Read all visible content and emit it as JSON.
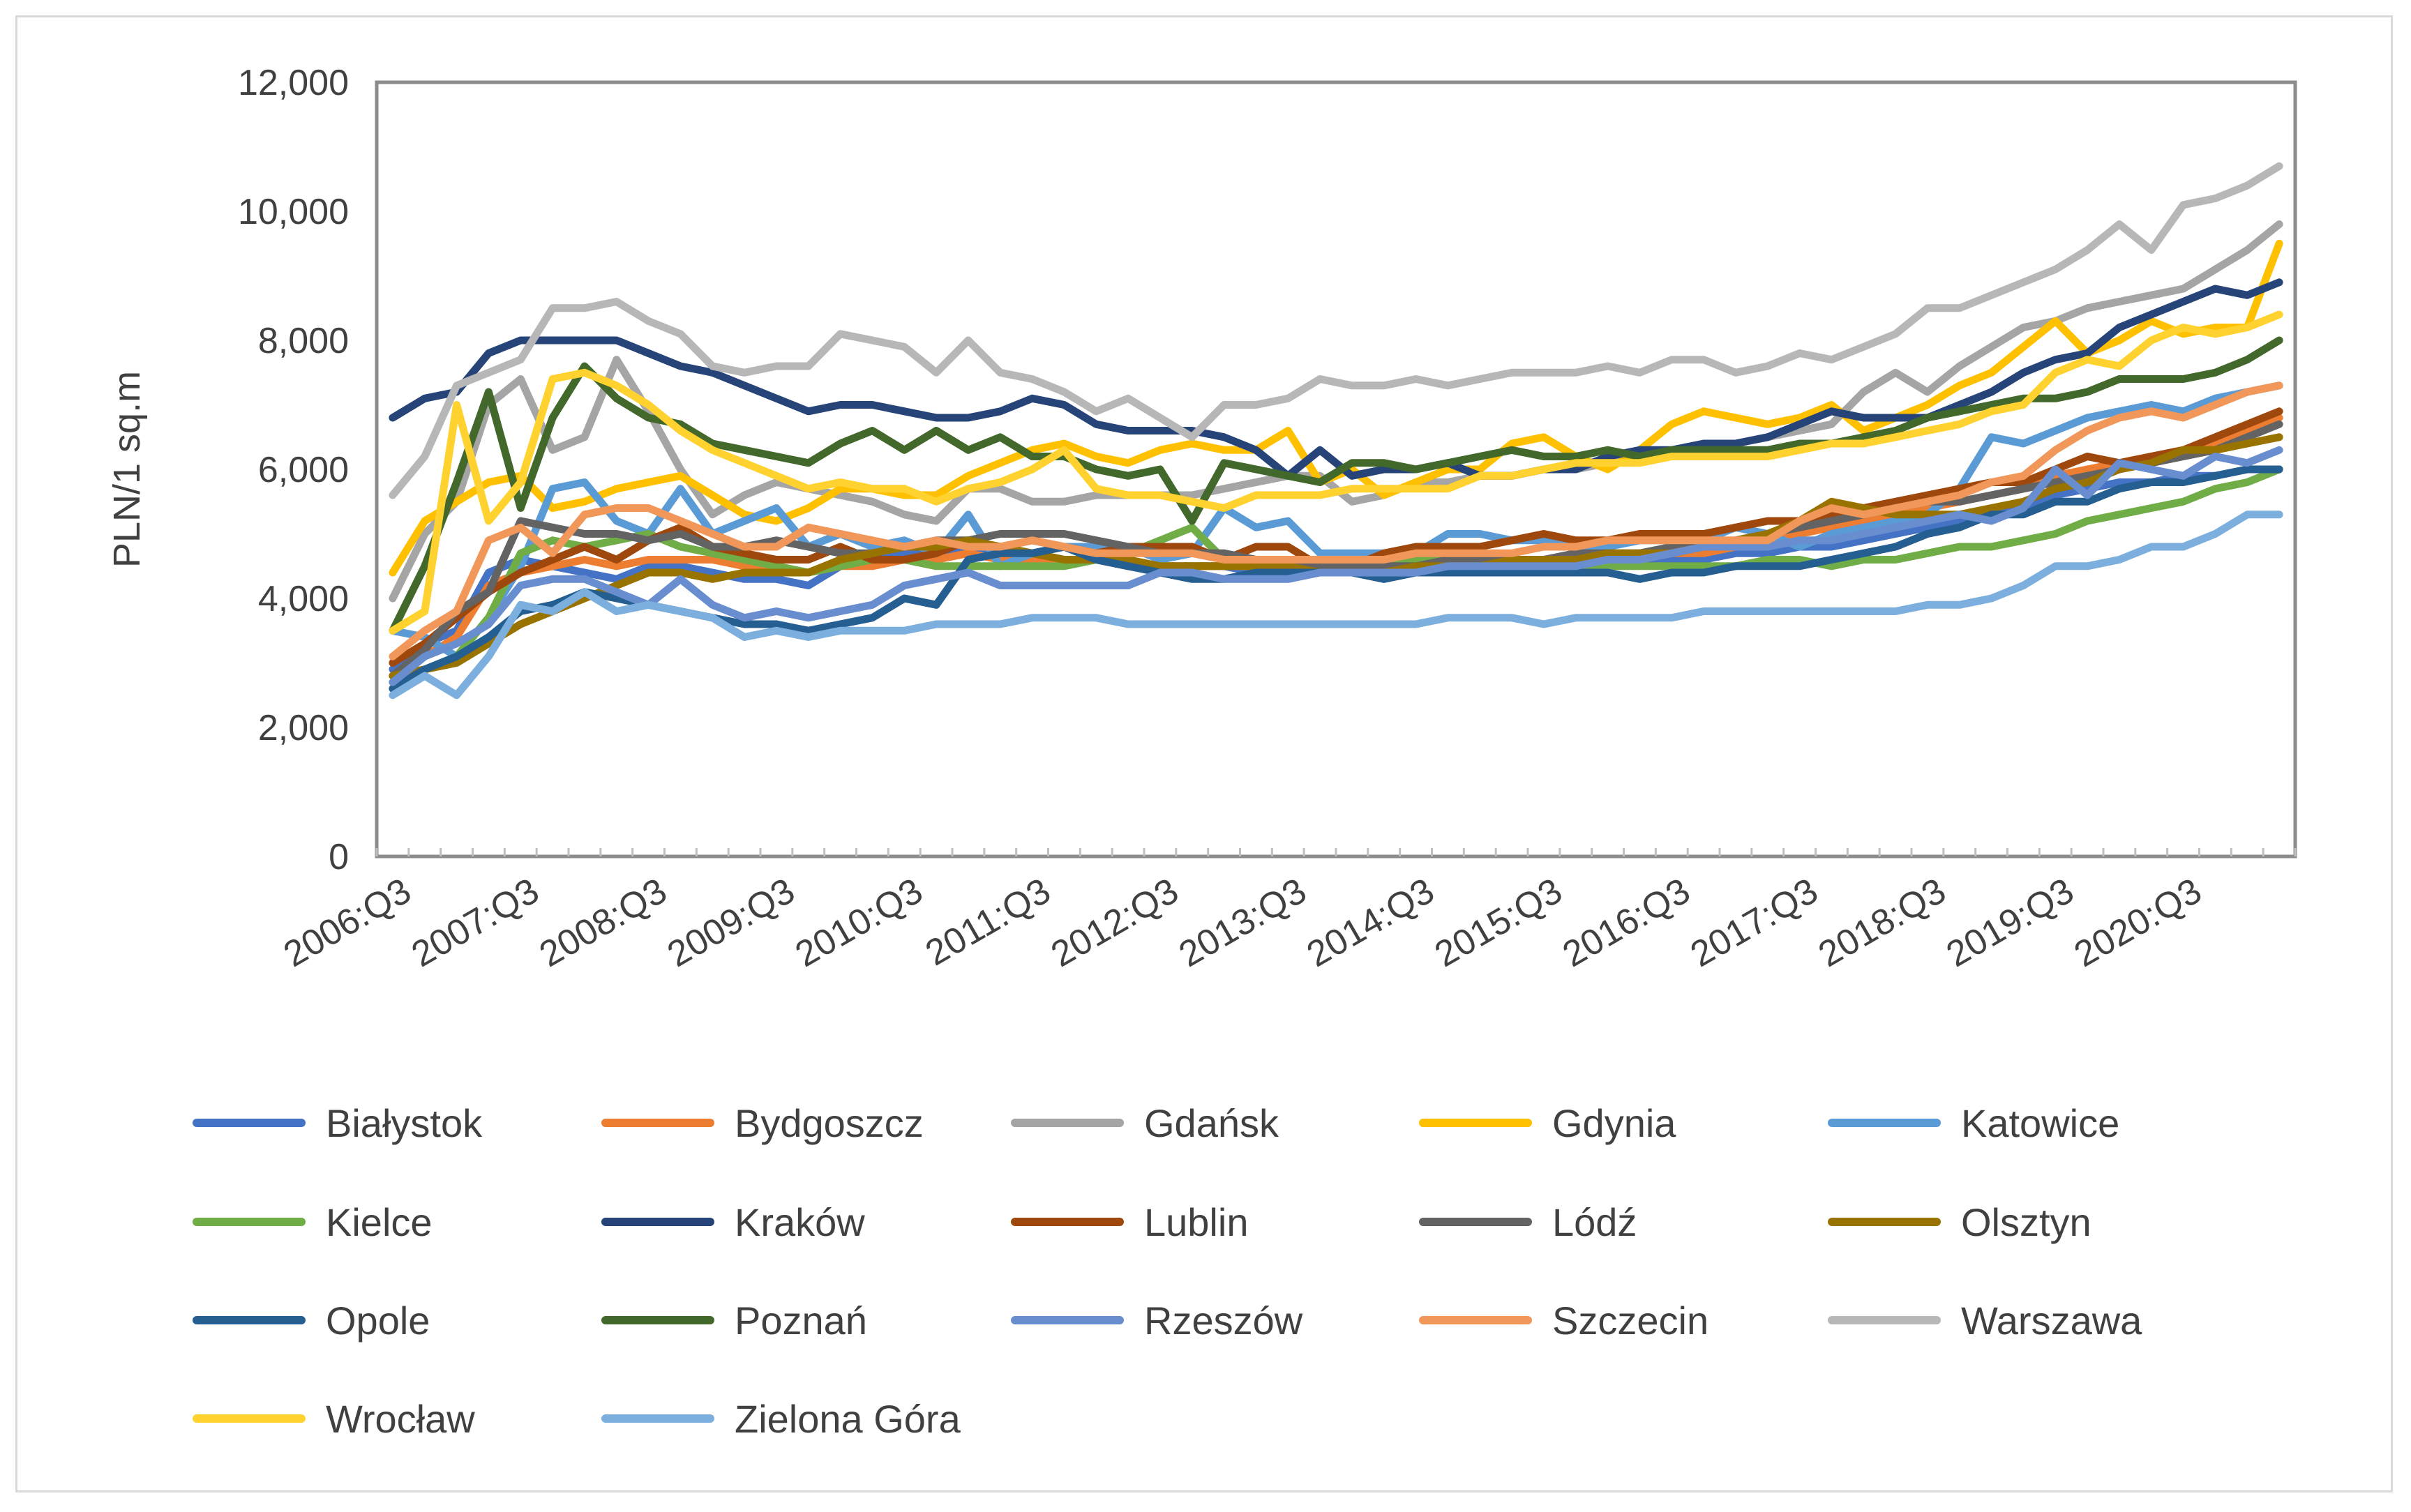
{
  "chart_data": {
    "type": "line",
    "title": "",
    "xlabel": "",
    "ylabel": "PLN/1 sq.m",
    "ylim": [
      0,
      12000
    ],
    "yticks": [
      0,
      2000,
      4000,
      6000,
      8000,
      10000,
      12000
    ],
    "ytick_labels": [
      "0",
      "2,000",
      "4,000",
      "6,000",
      "8,000",
      "10,000",
      "12,000"
    ],
    "xtick_labels": [
      "2006:Q3",
      "2007:Q3",
      "2008:Q3",
      "2009:Q3",
      "2010:Q3",
      "2011:Q3",
      "2012:Q3",
      "2013:Q3",
      "2014:Q3",
      "2015:Q3",
      "2016:Q3",
      "2017:Q3",
      "2018:Q3",
      "2019:Q3",
      "2020:Q3"
    ],
    "grid": false,
    "legend": "bottom",
    "x": [
      "2006:Q3",
      "2006:Q4",
      "2007:Q1",
      "2007:Q2",
      "2007:Q3",
      "2007:Q4",
      "2008:Q1",
      "2008:Q2",
      "2008:Q3",
      "2008:Q4",
      "2009:Q1",
      "2009:Q2",
      "2009:Q3",
      "2009:Q4",
      "2010:Q1",
      "2010:Q2",
      "2010:Q3",
      "2010:Q4",
      "2011:Q1",
      "2011:Q2",
      "2011:Q3",
      "2011:Q4",
      "2012:Q1",
      "2012:Q2",
      "2012:Q3",
      "2012:Q4",
      "2013:Q1",
      "2013:Q2",
      "2013:Q3",
      "2013:Q4",
      "2014:Q1",
      "2014:Q2",
      "2014:Q3",
      "2014:Q4",
      "2015:Q1",
      "2015:Q2",
      "2015:Q3",
      "2015:Q4",
      "2016:Q1",
      "2016:Q2",
      "2016:Q3",
      "2016:Q4",
      "2017:Q1",
      "2017:Q2",
      "2017:Q3",
      "2017:Q4",
      "2018:Q1",
      "2018:Q2",
      "2018:Q3",
      "2018:Q4",
      "2019:Q1",
      "2019:Q2",
      "2019:Q3",
      "2019:Q4",
      "2020:Q1",
      "2020:Q2",
      "2020:Q3",
      "2020:Q4",
      "2021:Q1",
      "2021:Q2"
    ],
    "series": [
      {
        "name": "Białystok",
        "color": "#4472c4",
        "values": [
          2900,
          3300,
          3500,
          4400,
          4600,
          4500,
          4400,
          4300,
          4500,
          4500,
          4400,
          4300,
          4300,
          4200,
          4500,
          4600,
          4700,
          4700,
          4800,
          4700,
          4700,
          4600,
          4600,
          4500,
          4500,
          4500,
          4500,
          4400,
          4400,
          4400,
          4500,
          4500,
          4500,
          4600,
          4600,
          4600,
          4600,
          4600,
          4600,
          4600,
          4600,
          4600,
          4700,
          4700,
          4800,
          4800,
          4900,
          5000,
          5100,
          5200,
          5300,
          5400,
          5600,
          5700,
          5800,
          5800,
          5900,
          5900,
          6000,
          6000
        ]
      },
      {
        "name": "Bydgoszcz",
        "color": "#ed7d31",
        "values": [
          2800,
          3100,
          3400,
          4200,
          4400,
          4500,
          4600,
          4500,
          4600,
          4600,
          4600,
          4500,
          4500,
          4400,
          4500,
          4500,
          4600,
          4600,
          4700,
          4600,
          4600,
          4600,
          4600,
          4500,
          4500,
          4500,
          4500,
          4500,
          4500,
          4400,
          4500,
          4500,
          4500,
          4500,
          4600,
          4600,
          4600,
          4600,
          4600,
          4600,
          4700,
          4700,
          4800,
          4900,
          5000,
          5100,
          5200,
          5300,
          5400,
          5500,
          5600,
          5700,
          5900,
          6000,
          6100,
          6200,
          6300,
          6400,
          6600,
          6800
        ]
      },
      {
        "name": "Gdańsk",
        "color": "#a5a5a5",
        "values": [
          4000,
          5000,
          5500,
          7000,
          7400,
          6300,
          6500,
          7700,
          6900,
          6000,
          5300,
          5600,
          5800,
          5700,
          5600,
          5500,
          5300,
          5200,
          5700,
          5700,
          5500,
          5500,
          5600,
          5600,
          5600,
          5600,
          5700,
          5800,
          5900,
          5900,
          5500,
          5600,
          5800,
          5800,
          5900,
          5900,
          6000,
          6000,
          6100,
          6200,
          6300,
          6300,
          6400,
          6500,
          6600,
          6700,
          7200,
          7500,
          7200,
          7600,
          7900,
          8200,
          8300,
          8500,
          8600,
          8700,
          8800,
          9100,
          9400,
          9800
        ]
      },
      {
        "name": "Gdynia",
        "color": "#ffc000",
        "values": [
          4400,
          5200,
          5500,
          5800,
          5900,
          5400,
          5500,
          5700,
          5800,
          5900,
          5600,
          5300,
          5200,
          5400,
          5700,
          5700,
          5600,
          5600,
          5900,
          6100,
          6300,
          6400,
          6200,
          6100,
          6300,
          6400,
          6300,
          6300,
          6600,
          5800,
          6000,
          5600,
          5800,
          6000,
          6000,
          6400,
          6500,
          6200,
          6000,
          6300,
          6700,
          6900,
          6800,
          6700,
          6800,
          7000,
          6600,
          6800,
          7000,
          7300,
          7500,
          7900,
          8300,
          7800,
          8000,
          8300,
          8100,
          8200,
          8200,
          9500
        ]
      },
      {
        "name": "Katowice",
        "color": "#5b9bd5",
        "values": [
          3500,
          3400,
          3100,
          3700,
          4500,
          5700,
          5800,
          5200,
          5000,
          5700,
          5000,
          5200,
          5400,
          4800,
          5000,
          4800,
          4900,
          4700,
          5300,
          4500,
          4700,
          4800,
          4800,
          4800,
          4600,
          4700,
          5400,
          5100,
          5200,
          4700,
          4700,
          4700,
          4700,
          5000,
          5000,
          4900,
          4900,
          4800,
          4800,
          4900,
          4900,
          4900,
          5100,
          5000,
          4800,
          5000,
          5100,
          5200,
          5300,
          5700,
          6500,
          6400,
          6600,
          6800,
          6900,
          7000,
          6900,
          7100,
          7200,
          7300
        ]
      },
      {
        "name": "Kielce",
        "color": "#70ad47",
        "values": [
          2700,
          2900,
          3100,
          3700,
          4700,
          4900,
          4800,
          4900,
          5000,
          4800,
          4700,
          4600,
          4500,
          4400,
          4500,
          4600,
          4600,
          4500,
          4500,
          4500,
          4500,
          4500,
          4600,
          4700,
          4900,
          5100,
          4600,
          4600,
          4500,
          4500,
          4500,
          4500,
          4600,
          4600,
          4500,
          4500,
          4500,
          4500,
          4500,
          4500,
          4500,
          4500,
          4500,
          4600,
          4600,
          4500,
          4600,
          4600,
          4700,
          4800,
          4800,
          4900,
          5000,
          5200,
          5300,
          5400,
          5500,
          5700,
          5800,
          6000
        ]
      },
      {
        "name": "Kraków",
        "color": "#264478",
        "values": [
          6800,
          7100,
          7200,
          7800,
          8000,
          8000,
          8000,
          8000,
          7800,
          7600,
          7500,
          7300,
          7100,
          6900,
          7000,
          7000,
          6900,
          6800,
          6800,
          6900,
          7100,
          7000,
          6700,
          6600,
          6600,
          6600,
          6500,
          6300,
          5900,
          6300,
          5900,
          6000,
          6000,
          6100,
          5900,
          5900,
          6000,
          6000,
          6200,
          6300,
          6300,
          6400,
          6400,
          6500,
          6700,
          6900,
          6800,
          6800,
          6800,
          7000,
          7200,
          7500,
          7700,
          7800,
          8200,
          8400,
          8600,
          8800,
          8700,
          8900
        ]
      },
      {
        "name": "Lublin",
        "color": "#9e480e",
        "values": [
          3000,
          3300,
          3700,
          4100,
          4400,
          4600,
          4800,
          4600,
          4900,
          5100,
          4800,
          4700,
          4600,
          4600,
          4800,
          4600,
          4600,
          4700,
          4900,
          4800,
          4900,
          4800,
          4700,
          4800,
          4800,
          4800,
          4600,
          4800,
          4800,
          4500,
          4500,
          4700,
          4800,
          4800,
          4800,
          4900,
          5000,
          4900,
          4900,
          5000,
          5000,
          5000,
          5100,
          5200,
          5200,
          5300,
          5400,
          5500,
          5600,
          5700,
          5800,
          5800,
          6000,
          6200,
          6100,
          6200,
          6300,
          6500,
          6700,
          6900
        ]
      },
      {
        "name": "Lódź",
        "color": "#636363",
        "values": [
          2800,
          3200,
          3800,
          4100,
          5200,
          5100,
          5000,
          5000,
          4900,
          5000,
          4800,
          4800,
          4900,
          4800,
          4700,
          4700,
          4800,
          4900,
          4900,
          5000,
          5000,
          5000,
          4900,
          4800,
          4700,
          4700,
          4700,
          4600,
          4600,
          4500,
          4500,
          4500,
          4500,
          4600,
          4600,
          4600,
          4600,
          4700,
          4700,
          4700,
          4800,
          4800,
          4900,
          5000,
          5100,
          5200,
          5300,
          5400,
          5500,
          5500,
          5600,
          5700,
          5800,
          5900,
          6000,
          6100,
          6200,
          6300,
          6500,
          6700
        ]
      },
      {
        "name": "Olsztyn",
        "color": "#997300",
        "values": [
          2800,
          2900,
          3000,
          3300,
          3600,
          3800,
          4000,
          4200,
          4400,
          4400,
          4300,
          4400,
          4400,
          4400,
          4600,
          4700,
          4800,
          4800,
          4900,
          4800,
          4700,
          4600,
          4600,
          4600,
          4500,
          4500,
          4500,
          4500,
          4500,
          4400,
          4400,
          4400,
          4500,
          4500,
          4500,
          4600,
          4600,
          4600,
          4700,
          4700,
          4700,
          4800,
          4900,
          5000,
          5200,
          5500,
          5400,
          5300,
          5300,
          5300,
          5400,
          5500,
          5700,
          5800,
          6000,
          6100,
          6300,
          6300,
          6400,
          6500
        ]
      },
      {
        "name": "Opole",
        "color": "#255e91",
        "values": [
          2600,
          2900,
          3100,
          3400,
          3800,
          3900,
          4100,
          4000,
          3900,
          3800,
          3700,
          3600,
          3600,
          3500,
          3600,
          3700,
          4000,
          3900,
          4600,
          4700,
          4700,
          4800,
          4600,
          4500,
          4400,
          4300,
          4300,
          4400,
          4400,
          4400,
          4400,
          4300,
          4400,
          4400,
          4400,
          4400,
          4400,
          4400,
          4400,
          4300,
          4400,
          4400,
          4500,
          4500,
          4500,
          4600,
          4700,
          4800,
          5000,
          5100,
          5300,
          5300,
          5500,
          5500,
          5700,
          5800,
          5800,
          5900,
          6000,
          6000
        ]
      },
      {
        "name": "Poznań",
        "color": "#43682b",
        "values": [
          3500,
          4500,
          5800,
          7200,
          5400,
          6800,
          7600,
          7100,
          6800,
          6700,
          6400,
          6300,
          6200,
          6100,
          6400,
          6600,
          6300,
          6600,
          6300,
          6500,
          6200,
          6200,
          6000,
          5900,
          6000,
          5200,
          6100,
          6000,
          5900,
          5800,
          6100,
          6100,
          6000,
          6100,
          6200,
          6300,
          6200,
          6200,
          6300,
          6200,
          6300,
          6300,
          6300,
          6300,
          6400,
          6400,
          6500,
          6600,
          6800,
          6900,
          7000,
          7100,
          7100,
          7200,
          7400,
          7400,
          7400,
          7500,
          7700,
          8000
        ]
      },
      {
        "name": "Rzeszów",
        "color": "#698ed0",
        "values": [
          2700,
          3100,
          3300,
          3600,
          4200,
          4300,
          4300,
          4100,
          3900,
          4300,
          3900,
          3700,
          3800,
          3700,
          3800,
          3900,
          4200,
          4300,
          4400,
          4200,
          4200,
          4200,
          4200,
          4200,
          4400,
          4400,
          4300,
          4300,
          4300,
          4400,
          4400,
          4400,
          4400,
          4500,
          4500,
          4500,
          4500,
          4500,
          4600,
          4600,
          4700,
          4800,
          4800,
          4800,
          4900,
          4900,
          5000,
          5100,
          5200,
          5300,
          5200,
          5400,
          6000,
          5600,
          6100,
          6000,
          5900,
          6200,
          6100,
          6300
        ]
      },
      {
        "name": "Szczecin",
        "color": "#f1975a",
        "values": [
          3100,
          3500,
          3800,
          4900,
          5100,
          4700,
          5300,
          5400,
          5400,
          5200,
          5000,
          4800,
          4800,
          5100,
          5000,
          4900,
          4800,
          4900,
          4800,
          4800,
          4900,
          4800,
          4700,
          4700,
          4700,
          4700,
          4600,
          4600,
          4600,
          4600,
          4600,
          4600,
          4700,
          4700,
          4700,
          4700,
          4800,
          4800,
          4900,
          4900,
          4900,
          4900,
          4900,
          4900,
          5200,
          5400,
          5300,
          5400,
          5500,
          5600,
          5800,
          5900,
          6300,
          6600,
          6800,
          6900,
          6800,
          7000,
          7200,
          7300
        ]
      },
      {
        "name": "Warszawa",
        "color": "#b7b7b7",
        "values": [
          5600,
          6200,
          7300,
          7500,
          7700,
          8500,
          8500,
          8600,
          8300,
          8100,
          7600,
          7500,
          7600,
          7600,
          8100,
          8000,
          7900,
          7500,
          8000,
          7500,
          7400,
          7200,
          6900,
          7100,
          6800,
          6500,
          7000,
          7000,
          7100,
          7400,
          7300,
          7300,
          7400,
          7300,
          7400,
          7500,
          7500,
          7500,
          7600,
          7500,
          7700,
          7700,
          7500,
          7600,
          7800,
          7700,
          7900,
          8100,
          8500,
          8500,
          8700,
          8900,
          9100,
          9400,
          9800,
          9400,
          10100,
          10200,
          10400,
          10700
        ]
      },
      {
        "name": "Wrocław",
        "color": "#ffd22f",
        "values": [
          3500,
          3800,
          7000,
          5200,
          5800,
          7400,
          7500,
          7300,
          7000,
          6600,
          6300,
          6100,
          5900,
          5700,
          5800,
          5700,
          5700,
          5500,
          5700,
          5800,
          6000,
          6300,
          5700,
          5600,
          5600,
          5500,
          5400,
          5600,
          5600,
          5600,
          5700,
          5700,
          5700,
          5700,
          5900,
          5900,
          6000,
          6100,
          6100,
          6100,
          6200,
          6200,
          6200,
          6200,
          6300,
          6400,
          6400,
          6500,
          6600,
          6700,
          6900,
          7000,
          7500,
          7700,
          7600,
          8000,
          8200,
          8100,
          8200,
          8400
        ]
      },
      {
        "name": "Zielona Góra",
        "color": "#7cafdd",
        "values": [
          2500,
          2800,
          2500,
          3100,
          3900,
          3800,
          4100,
          3800,
          3900,
          3800,
          3700,
          3400,
          3500,
          3400,
          3500,
          3500,
          3500,
          3600,
          3600,
          3600,
          3700,
          3700,
          3700,
          3600,
          3600,
          3600,
          3600,
          3600,
          3600,
          3600,
          3600,
          3600,
          3600,
          3700,
          3700,
          3700,
          3600,
          3700,
          3700,
          3700,
          3700,
          3800,
          3800,
          3800,
          3800,
          3800,
          3800,
          3800,
          3900,
          3900,
          4000,
          4200,
          4500,
          4500,
          4600,
          4800,
          4800,
          5000,
          5300,
          5300
        ]
      }
    ]
  }
}
